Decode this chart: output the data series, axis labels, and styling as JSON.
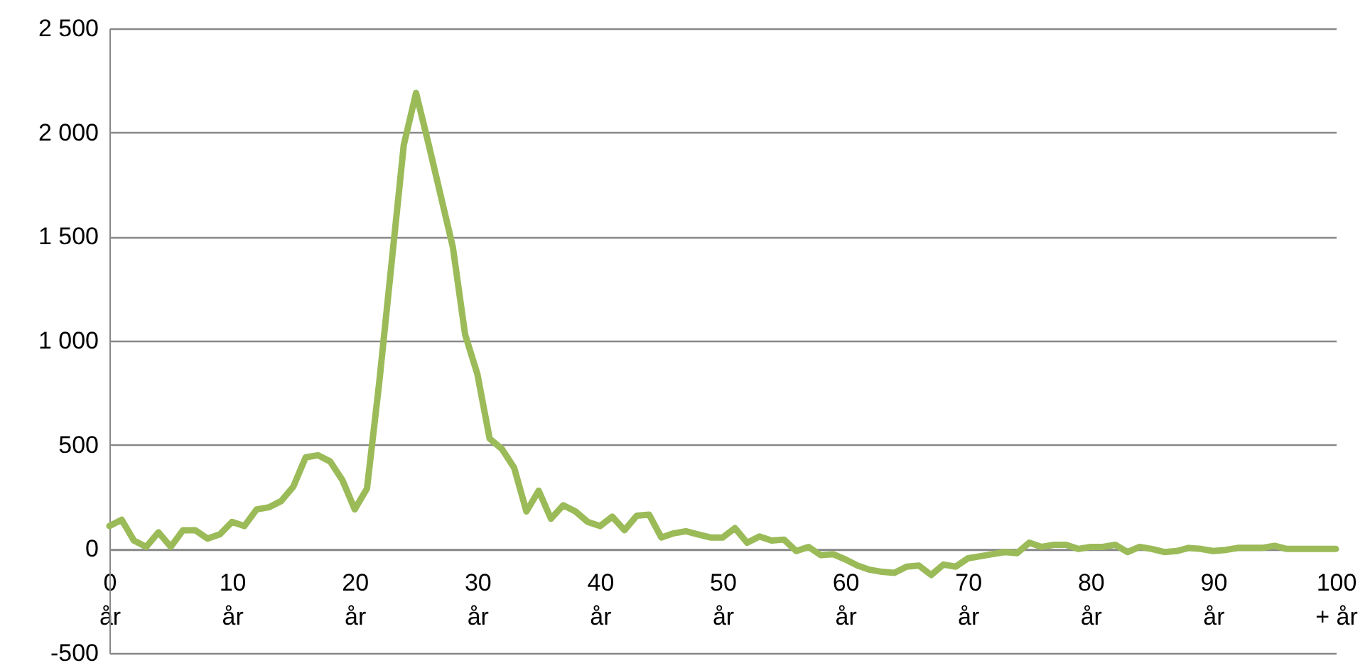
{
  "chart_data": {
    "type": "line",
    "categories": [
      "0 år",
      null,
      null,
      null,
      null,
      null,
      null,
      null,
      null,
      null,
      "10 år",
      null,
      null,
      null,
      null,
      null,
      null,
      null,
      null,
      null,
      "20 år",
      null,
      null,
      null,
      null,
      null,
      null,
      null,
      null,
      null,
      "30 år",
      null,
      null,
      null,
      null,
      null,
      null,
      null,
      null,
      null,
      "40 år",
      null,
      null,
      null,
      null,
      null,
      null,
      null,
      null,
      null,
      "50 år",
      null,
      null,
      null,
      null,
      null,
      null,
      null,
      null,
      null,
      "60 år",
      null,
      null,
      null,
      null,
      null,
      null,
      null,
      null,
      null,
      "70 år",
      null,
      null,
      null,
      null,
      null,
      null,
      null,
      null,
      null,
      "80 år",
      null,
      null,
      null,
      null,
      null,
      null,
      null,
      null,
      null,
      "90 år",
      null,
      null,
      null,
      null,
      null,
      null,
      null,
      null,
      null,
      "100 + år"
    ],
    "series": [
      {
        "color": "#9bbb59",
        "values": [
          110,
          140,
          40,
          10,
          80,
          10,
          90,
          90,
          50,
          70,
          130,
          110,
          190,
          200,
          230,
          300,
          440,
          450,
          420,
          330,
          190,
          290,
          800,
          1370,
          1940,
          2190,
          1950,
          1700,
          1450,
          1030,
          840,
          530,
          480,
          390,
          180,
          280,
          145,
          210,
          180,
          130,
          110,
          155,
          90,
          160,
          165,
          55,
          75,
          85,
          70,
          55,
          55,
          100,
          30,
          60,
          40,
          45,
          -10,
          10,
          -30,
          -25,
          -50,
          -80,
          -100,
          -110,
          -115,
          -85,
          -80,
          -125,
          -75,
          -85,
          -45,
          -35,
          -25,
          -15,
          -20,
          30,
          10,
          20,
          20,
          0,
          10,
          10,
          20,
          -15,
          10,
          0,
          -15,
          -10,
          5,
          0,
          -10,
          -5,
          5,
          5,
          5,
          15,
          0,
          0,
          0,
          0,
          0
        ]
      }
    ],
    "ylim": [
      -500,
      2500
    ],
    "yticks": [
      -500,
      0,
      500,
      {
        "value": 1000,
        "label": "1 000"
      },
      {
        "value": 1500,
        "label": "1 500"
      },
      {
        "value": 2000,
        "label": "2 000"
      },
      {
        "value": 2500,
        "label": "2 500"
      }
    ],
    "grid": "y",
    "marker": "none",
    "line_style": "solid"
  }
}
